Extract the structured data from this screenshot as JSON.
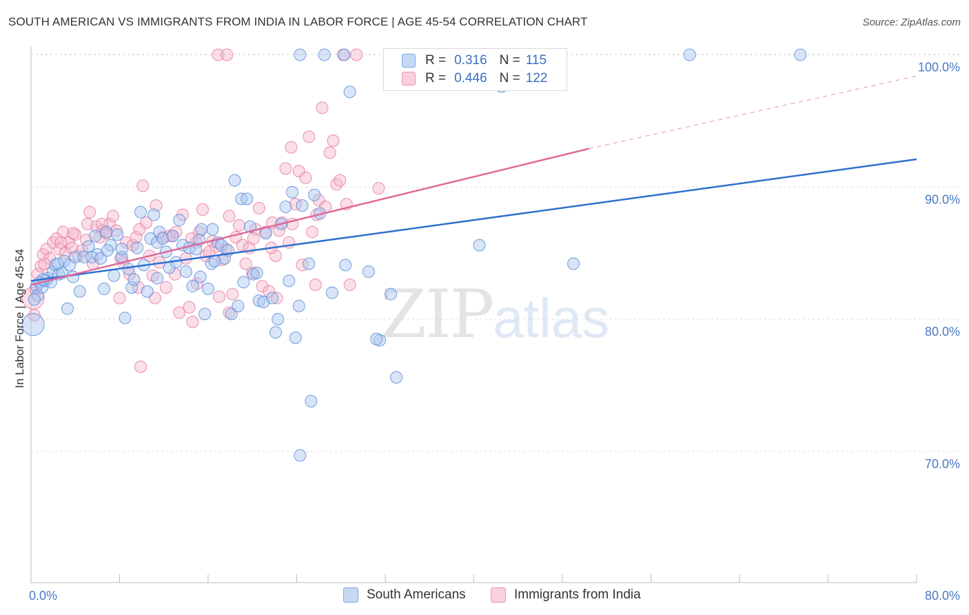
{
  "title": "SOUTH AMERICAN VS IMMIGRANTS FROM INDIA IN LABOR FORCE | AGE 45-54 CORRELATION CHART",
  "source": "Source: ZipAtlas.com",
  "watermark": {
    "zip": "ZIP",
    "atlas": "atlas"
  },
  "legend_top": {
    "rows": [
      {
        "r_label": "R =",
        "r_value": "0.316",
        "n_label": "N =",
        "n_value": "115",
        "color": "#a8c6ef"
      },
      {
        "r_label": "R =",
        "r_value": "0.446",
        "n_label": "N =",
        "n_value": "122",
        "color": "#f5b8cb"
      }
    ]
  },
  "legend_bottom": {
    "items": [
      {
        "label": "South Americans",
        "color": "#a8c6ef"
      },
      {
        "label": "Immigrants from India",
        "color": "#f5b8cb"
      }
    ]
  },
  "chart_data": {
    "type": "scatter",
    "xlabel": "",
    "ylabel": "In Labor Force | Age 45-54",
    "xlim": [
      0,
      80
    ],
    "ylim": [
      60,
      103
    ],
    "x_tick_labels": [
      "0.0%",
      "80.0%"
    ],
    "y_ticks": [
      70,
      80,
      90,
      100
    ],
    "y_tick_labels": [
      "70.0%",
      "80.0%",
      "90.0%",
      "100.0%"
    ],
    "grid": true,
    "colors": {
      "blue": "#6fa0e0",
      "blue_fill": "#a8c6ef",
      "pink": "#e97aa0",
      "pink_fill": "#f5b8cb",
      "blue_line": "#2f6fce",
      "pink_line": "#e0699a"
    },
    "series": [
      {
        "name": "South Americans",
        "trend": {
          "x": [
            0,
            80
          ],
          "y": [
            82.9,
            92.1
          ]
        },
        "points": [
          [
            0.2,
            79.6
          ],
          [
            0.5,
            82.5
          ],
          [
            0.6,
            81.8
          ],
          [
            0.8,
            82.8
          ],
          [
            1,
            82.4
          ],
          [
            1.3,
            82.9
          ],
          [
            1.5,
            83.1
          ],
          [
            1.8,
            82.8
          ],
          [
            2,
            83.6
          ],
          [
            2.2,
            84.1
          ],
          [
            2.5,
            83.4
          ],
          [
            2.8,
            83.5
          ],
          [
            3,
            84.4
          ],
          [
            3.3,
            80.8
          ],
          [
            3.5,
            84.1
          ],
          [
            3.8,
            83.2
          ],
          [
            4,
            84.7
          ],
          [
            4.4,
            82.1
          ],
          [
            4.8,
            84.7
          ],
          [
            5.2,
            85.5
          ],
          [
            5.5,
            84.7
          ],
          [
            5.8,
            86.3
          ],
          [
            6,
            84.9
          ],
          [
            6.3,
            84.6
          ],
          [
            6.6,
            82.3
          ],
          [
            6.8,
            86.6
          ],
          [
            7.2,
            85.6
          ],
          [
            7.5,
            83.3
          ],
          [
            7.8,
            86.4
          ],
          [
            8.2,
            84.7
          ],
          [
            8.5,
            80.1
          ],
          [
            8.8,
            83.8
          ],
          [
            9.1,
            82.4
          ],
          [
            9.3,
            83.0
          ],
          [
            9.6,
            85.4
          ],
          [
            9.9,
            88.1
          ],
          [
            10.2,
            84.1
          ],
          [
            10.5,
            82.1
          ],
          [
            10.8,
            86.1
          ],
          [
            11.1,
            87.9
          ],
          [
            11.4,
            85.8
          ],
          [
            11.6,
            86.6
          ],
          [
            11.9,
            86.1
          ],
          [
            12.2,
            85.1
          ],
          [
            12.5,
            83.9
          ],
          [
            12.8,
            86.3
          ],
          [
            13.1,
            84.3
          ],
          [
            13.4,
            87.5
          ],
          [
            13.7,
            85.6
          ],
          [
            14.0,
            83.6
          ],
          [
            14.3,
            85.4
          ],
          [
            14.6,
            82.5
          ],
          [
            14.9,
            85.3
          ],
          [
            15.2,
            86.0
          ],
          [
            15.4,
            86.8
          ],
          [
            15.7,
            80.4
          ],
          [
            16.0,
            82.3
          ],
          [
            16.3,
            84.2
          ],
          [
            16.6,
            84.4
          ],
          [
            16.9,
            85.8
          ],
          [
            17.2,
            85.6
          ],
          [
            17.5,
            84.6
          ],
          [
            17.8,
            85.2
          ],
          [
            18.1,
            80.4
          ],
          [
            18.4,
            90.5
          ],
          [
            18.7,
            81.0
          ],
          [
            19.0,
            89.1
          ],
          [
            19.2,
            82.8
          ],
          [
            19.5,
            89.1
          ],
          [
            19.8,
            87.0
          ],
          [
            20.1,
            83.4
          ],
          [
            20.4,
            83.5
          ],
          [
            20.6,
            81.4
          ],
          [
            21,
            81.3
          ],
          [
            21.2,
            86.5
          ],
          [
            21.8,
            81.6
          ],
          [
            22.1,
            79.0
          ],
          [
            22.3,
            80.0
          ],
          [
            22.6,
            87.2
          ],
          [
            23,
            88.5
          ],
          [
            23.3,
            82.9
          ],
          [
            23.6,
            89.6
          ],
          [
            23.9,
            78.6
          ],
          [
            24.2,
            81.0
          ],
          [
            24.5,
            88.6
          ],
          [
            25.1,
            84.2
          ],
          [
            25.6,
            89.4
          ],
          [
            26.1,
            88.0
          ],
          [
            26.5,
            100.0
          ],
          [
            27.2,
            82.0
          ],
          [
            28.4,
            84.1
          ],
          [
            28.8,
            97.2
          ],
          [
            30.5,
            83.6
          ],
          [
            31.5,
            78.4
          ],
          [
            32.5,
            81.9
          ],
          [
            33.0,
            75.6
          ],
          [
            36.0,
            100.0
          ],
          [
            40.5,
            85.6
          ],
          [
            42.5,
            97.6
          ],
          [
            49.0,
            84.2
          ],
          [
            59.5,
            100.0
          ],
          [
            69.5,
            100.0
          ],
          [
            24.3,
            69.7
          ],
          [
            25.3,
            73.8
          ],
          [
            0.3,
            81.5
          ],
          [
            1.1,
            83.0
          ],
          [
            2.4,
            84.2
          ],
          [
            6.9,
            85.2
          ],
          [
            8.2,
            85.3
          ],
          [
            11.4,
            83.1
          ],
          [
            31.2,
            78.5
          ],
          [
            24.3,
            100.0
          ],
          [
            28.3,
            100.0
          ],
          [
            16.4,
            86.8
          ],
          [
            15.3,
            83.2
          ]
        ]
      },
      {
        "name": "Immigrants from India",
        "trend": {
          "x": [
            0,
            50.4
          ],
          "y": [
            82.6,
            92.9
          ],
          "dashed_to": {
            "x": 80,
            "y": 98.4
          }
        },
        "points": [
          [
            0.2,
            81.6
          ],
          [
            0.4,
            82.3
          ],
          [
            0.6,
            83.4
          ],
          [
            0.9,
            84.0
          ],
          [
            1.1,
            84.9
          ],
          [
            1.4,
            85.3
          ],
          [
            1.7,
            84.6
          ],
          [
            2.0,
            85.8
          ],
          [
            2.3,
            86.1
          ],
          [
            2.6,
            85.3
          ],
          [
            2.9,
            86.6
          ],
          [
            3.1,
            85.0
          ],
          [
            3.4,
            85.8
          ],
          [
            3.7,
            85.4
          ],
          [
            4.0,
            86.4
          ],
          [
            4.3,
            84.8
          ],
          [
            4.6,
            85.2
          ],
          [
            5.0,
            86.0
          ],
          [
            5.3,
            88.1
          ],
          [
            5.6,
            84.2
          ],
          [
            5.9,
            87.0
          ],
          [
            6.2,
            86.2
          ],
          [
            6.5,
            86.7
          ],
          [
            6.8,
            86.5
          ],
          [
            7.1,
            87.2
          ],
          [
            7.4,
            87.8
          ],
          [
            7.7,
            86.7
          ],
          [
            8.0,
            81.6
          ],
          [
            8.3,
            84.3
          ],
          [
            8.6,
            85.8
          ],
          [
            8.9,
            83.4
          ],
          [
            9.2,
            85.6
          ],
          [
            9.5,
            86.2
          ],
          [
            9.8,
            86.8
          ],
          [
            10.1,
            90.1
          ],
          [
            10.4,
            87.3
          ],
          [
            10.7,
            84.8
          ],
          [
            11.0,
            83.3
          ],
          [
            11.3,
            88.6
          ],
          [
            11.6,
            84.3
          ],
          [
            11.9,
            86.2
          ],
          [
            12.2,
            82.4
          ],
          [
            12.5,
            86.3
          ],
          [
            12.8,
            86.3
          ],
          [
            13.1,
            86.6
          ],
          [
            13.4,
            80.5
          ],
          [
            13.7,
            87.9
          ],
          [
            14.0,
            84.6
          ],
          [
            14.3,
            80.9
          ],
          [
            14.6,
            79.8
          ],
          [
            14.9,
            85.8
          ],
          [
            15.2,
            86.6
          ],
          [
            15.5,
            88.3
          ],
          [
            15.8,
            84.8
          ],
          [
            16.1,
            85.1
          ],
          [
            16.4,
            85.9
          ],
          [
            16.7,
            85.5
          ],
          [
            17.0,
            81.7
          ],
          [
            17.3,
            84.5
          ],
          [
            17.6,
            85.3
          ],
          [
            17.9,
            87.8
          ],
          [
            18.2,
            81.9
          ],
          [
            18.5,
            86.2
          ],
          [
            18.8,
            87.1
          ],
          [
            19.1,
            85.6
          ],
          [
            19.4,
            84.2
          ],
          [
            19.7,
            85.4
          ],
          [
            20.0,
            83.5
          ],
          [
            20.3,
            86.8
          ],
          [
            20.6,
            88.4
          ],
          [
            20.9,
            82.5
          ],
          [
            21.2,
            86.6
          ],
          [
            21.5,
            82.1
          ],
          [
            21.8,
            87.3
          ],
          [
            22.1,
            84.8
          ],
          [
            22.4,
            86.7
          ],
          [
            22.7,
            87.3
          ],
          [
            23.0,
            91.4
          ],
          [
            23.3,
            85.8
          ],
          [
            23.6,
            87.2
          ],
          [
            23.9,
            88.7
          ],
          [
            24.2,
            91.2
          ],
          [
            24.5,
            84.1
          ],
          [
            24.8,
            90.7
          ],
          [
            25.1,
            93.8
          ],
          [
            25.4,
            86.6
          ],
          [
            25.7,
            82.6
          ],
          [
            26.0,
            89.0
          ],
          [
            26.3,
            96.0
          ],
          [
            26.6,
            88.5
          ],
          [
            27.0,
            92.6
          ],
          [
            27.3,
            93.5
          ],
          [
            27.6,
            90.2
          ],
          [
            27.9,
            90.5
          ],
          [
            28.2,
            100.0
          ],
          [
            28.5,
            88.7
          ],
          [
            28.8,
            82.6
          ],
          [
            16.9,
            100.0
          ],
          [
            17.7,
            100.0
          ],
          [
            21.7,
            85.4
          ],
          [
            22.2,
            81.6
          ],
          [
            29.4,
            100.0
          ],
          [
            31.4,
            89.9
          ],
          [
            0.3,
            80.3
          ],
          [
            1.2,
            84.2
          ],
          [
            2.7,
            85.8
          ],
          [
            3.8,
            86.5
          ],
          [
            5.1,
            87.2
          ],
          [
            6.4,
            87.2
          ],
          [
            8.1,
            84.6
          ],
          [
            9.7,
            82.4
          ],
          [
            11.2,
            81.6
          ],
          [
            13.0,
            83.4
          ],
          [
            15.0,
            82.7
          ],
          [
            17.9,
            80.5
          ],
          [
            20.1,
            86.1
          ],
          [
            23.5,
            93.0
          ],
          [
            25.8,
            87.9
          ],
          [
            9.9,
            76.4
          ],
          [
            14.5,
            86.1
          ]
        ]
      }
    ]
  }
}
